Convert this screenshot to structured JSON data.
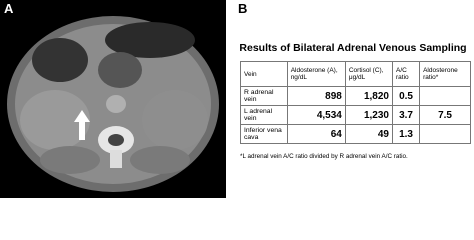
{
  "panel_a": {
    "label": "A"
  },
  "panel_b": {
    "label": "B",
    "title": "Results of Bilateral Adrenal Venous Sampling",
    "table": {
      "header": [
        "Vein",
        "Aldosterone (A), ng/dL",
        "Cortisol (C), μg/dL",
        "A/C ratio",
        "Aldosterone ratio*"
      ],
      "rows": [
        [
          "R adrenal vein",
          "898",
          "1,820",
          "0.5",
          null
        ],
        [
          "L adrenal vein",
          "4,534",
          "1,230",
          "3.7",
          "7.5"
        ],
        [
          "Inferior vena cava",
          "64",
          "49",
          "1.3",
          null
        ]
      ]
    },
    "footnote": "*L adrenal vein A/C ratio divided by R adrenal vein A/C ratio."
  }
}
